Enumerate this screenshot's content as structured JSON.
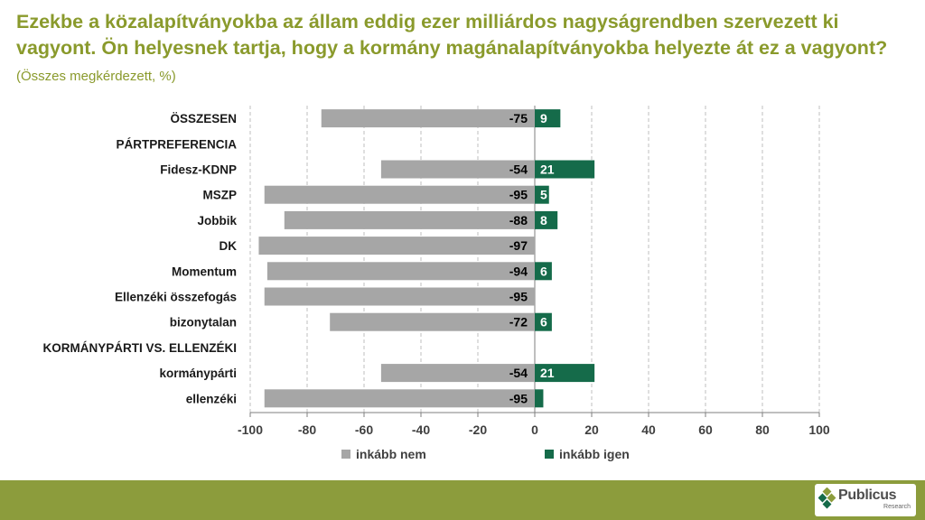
{
  "title": {
    "main": "Ezekbe a közalapítványokba az állam eddig ezer milliárdos nagyságrendben szervezett ki vagyont. Ön helyesnek tartja, hogy a kormány magánalapítványokba helyezte át ez a vagyont?",
    "note": "(Összes megkérdezett, %)"
  },
  "colors": {
    "nem": "#a6a6a6",
    "igen": "#156b4a",
    "title": "#8a9a2c",
    "footer": "#8c9c3c"
  },
  "chart_data": {
    "type": "bar",
    "orientation": "horizontal",
    "stacked": "diverging",
    "categories": [
      "ÖSSZESEN",
      "PÁRTPREFERENCIA",
      "Fidesz-KDNP",
      "MSZP",
      "Jobbik",
      "DK",
      "Momentum",
      "Ellenzéki összefogás",
      "bizonytalan",
      "KORMÁNYPÁRTI VS. ELLENZÉKI",
      "kormánypárti",
      "ellenzéki"
    ],
    "series": [
      {
        "name": "inkább nem",
        "values": [
          -75,
          null,
          -54,
          -95,
          -88,
          -97,
          -94,
          -95,
          -72,
          null,
          -54,
          -95
        ]
      },
      {
        "name": "inkább igen",
        "values": [
          9,
          null,
          21,
          5,
          8,
          null,
          6,
          null,
          6,
          null,
          21,
          3
        ]
      }
    ],
    "igen_labels": [
      "9",
      "",
      "21",
      "5",
      "8",
      "",
      "6",
      "",
      "6",
      "",
      "21",
      ""
    ],
    "xlim": [
      -100,
      100
    ],
    "xticks": [
      -100,
      -80,
      -60,
      -40,
      -20,
      0,
      20,
      40,
      60,
      80,
      100
    ],
    "grid": true,
    "legend_position": "bottom"
  },
  "logo": {
    "name": "Publicus",
    "sub": "Research"
  }
}
